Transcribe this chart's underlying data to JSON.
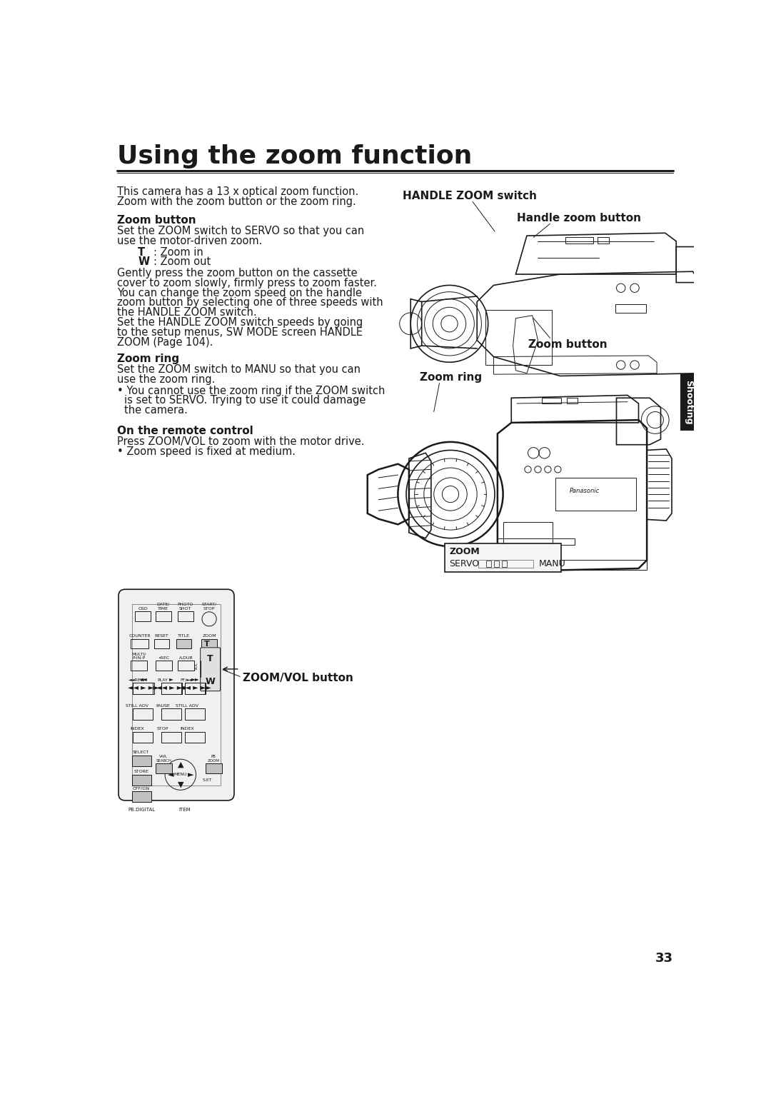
{
  "title": "Using the zoom function",
  "bg_color": "#ffffff",
  "text_color": "#1a1a1a",
  "page_number": "33",
  "tab_label": "Shooting",
  "tab_color": "#1a1a1a",
  "intro_text1": "This camera has a 13 x optical zoom function.",
  "intro_text2": "Zoom with the zoom button or the zoom ring.",
  "zoom_button_header": "Zoom button",
  "zoom_ring_header": "Zoom ring",
  "remote_header": "On the remote control",
  "handle_zoom_label": "HANDLE ZOOM switch",
  "handle_zoom_button_label": "Handle zoom button",
  "zoom_button_label": "Zoom button",
  "zoom_ring_label": "Zoom ring",
  "zoom_vol_label": "ZOOM/VOL button",
  "lc": "#1a1a1a",
  "lw": 1.2
}
